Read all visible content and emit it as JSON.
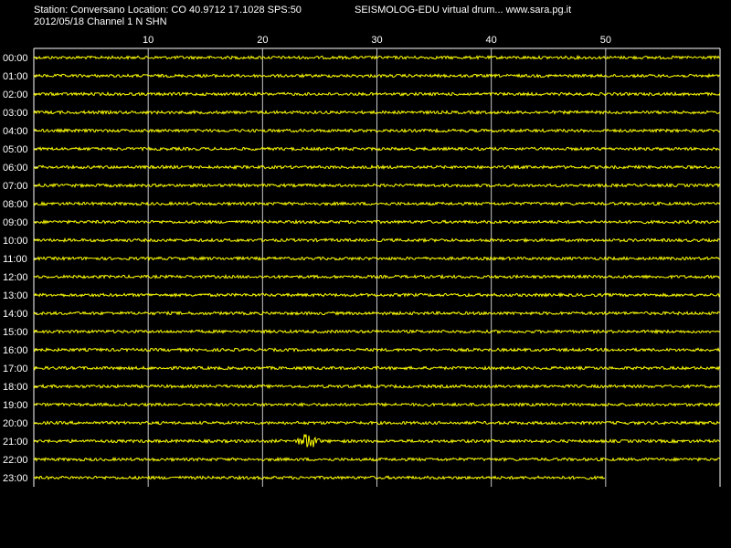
{
  "header": {
    "station_line": "Station: Conversano Location: CO 40.9712 17.1028 SPS:50",
    "date_channel_line": "2012/05/18  Channel 1 N SHN",
    "brand": "SEISMOLOG-EDU virtual drum... www.sara.pg.it"
  },
  "drum": {
    "minute_ticks": [
      "10",
      "20",
      "30",
      "40",
      "50"
    ],
    "hour_labels": [
      "00:00",
      "01:00",
      "02:00",
      "03:00",
      "04:00",
      "05:00",
      "06:00",
      "07:00",
      "08:00",
      "09:00",
      "10:00",
      "11:00",
      "12:00",
      "13:00",
      "14:00",
      "15:00",
      "16:00",
      "17:00",
      "18:00",
      "19:00",
      "20:00",
      "21:00",
      "22:00",
      "23:00"
    ],
    "trace_color": "#ffff00",
    "grid_color": "#c8c8c8",
    "last_row_end_minute": 50,
    "event": {
      "hour": "21:00",
      "minute": 24
    }
  }
}
